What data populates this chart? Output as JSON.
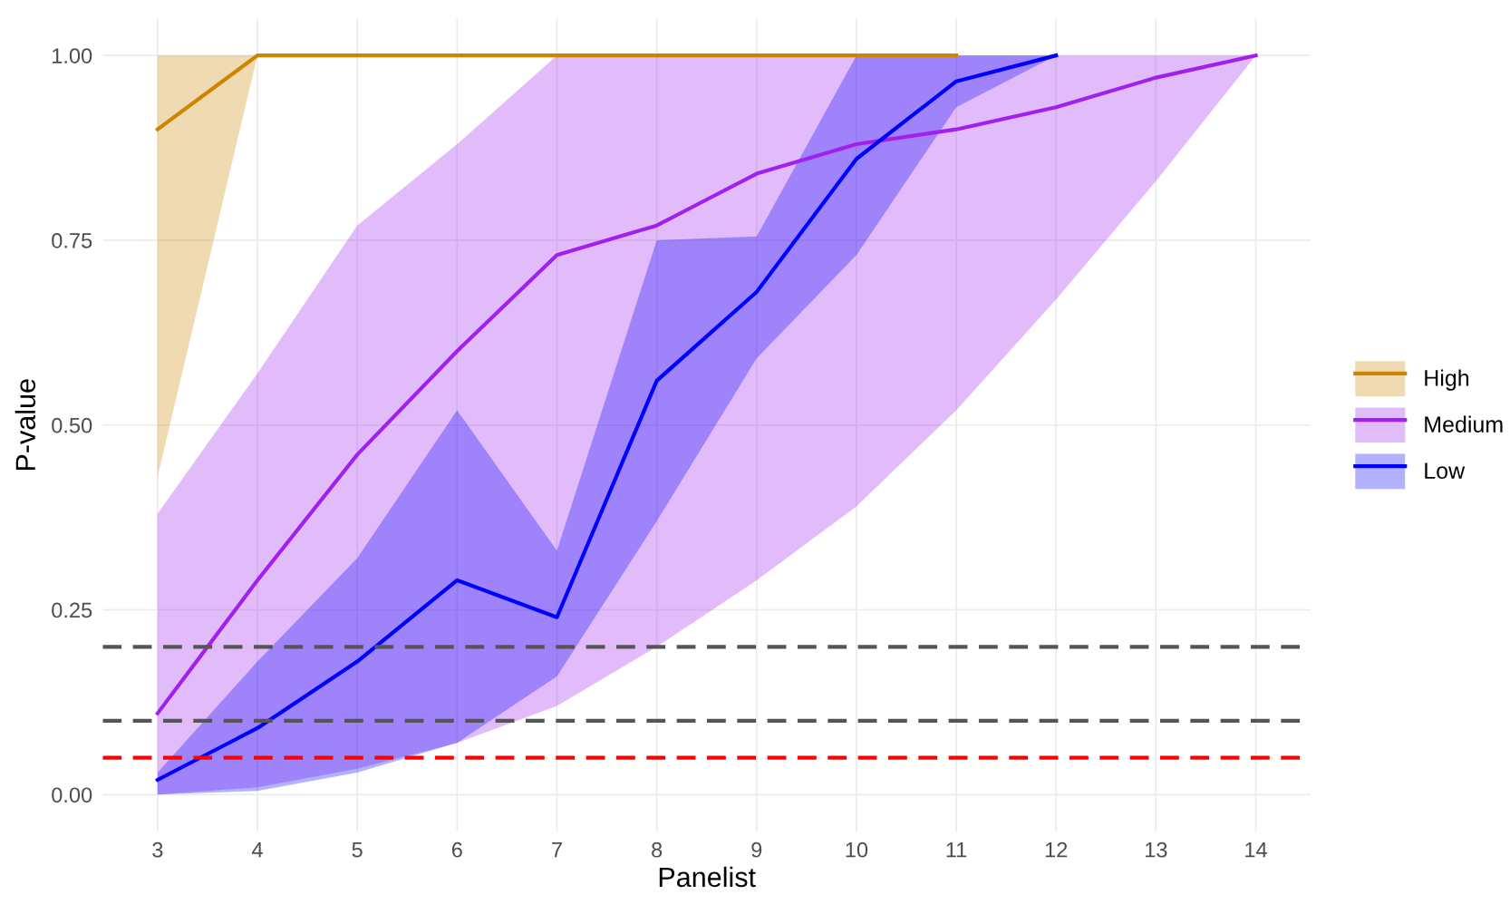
{
  "chart_data": {
    "type": "line",
    "xlabel": "Panelist",
    "ylabel": "P-value",
    "xlim": [
      2.45,
      14.55
    ],
    "ylim": [
      -0.05,
      1.05
    ],
    "xticks": [
      3,
      4,
      5,
      6,
      7,
      8,
      9,
      10,
      11,
      12,
      13,
      14
    ],
    "yticks": [
      {
        "value": 0,
        "label": "0.00"
      },
      {
        "value": 0.25,
        "label": "0.25"
      },
      {
        "value": 0.5,
        "label": "0.50"
      },
      {
        "value": 0.75,
        "label": "0.75"
      },
      {
        "value": 1,
        "label": "1.00"
      }
    ],
    "grid": true,
    "legend": "right",
    "line_style": "solid",
    "marker": "none",
    "series": [
      {
        "name": "High",
        "color": "#cd8500",
        "x": [
          3,
          4,
          5,
          6,
          7,
          8,
          9,
          10,
          11
        ],
        "values": [
          0.9,
          1,
          1,
          1,
          1,
          1,
          1,
          1,
          1
        ],
        "lower": [
          0.43,
          1,
          1,
          1,
          1,
          1,
          1,
          1,
          1
        ],
        "upper": [
          1,
          1,
          1,
          1,
          1,
          1,
          1,
          1,
          1
        ]
      },
      {
        "name": "Medium",
        "color": "#a020f0",
        "x": [
          3,
          4,
          5,
          6,
          7,
          8,
          9,
          10,
          11,
          12,
          13,
          14
        ],
        "values": [
          0.11,
          0.29,
          0.46,
          0.6,
          0.73,
          0.77,
          0.84,
          0.88,
          0.9,
          0.93,
          0.97,
          1
        ],
        "lower": [
          0,
          0.01,
          0.035,
          0.07,
          0.12,
          0.2,
          0.29,
          0.39,
          0.52,
          0.67,
          0.83,
          1
        ],
        "upper": [
          0.38,
          0.57,
          0.77,
          0.88,
          1,
          1,
          1,
          1,
          1,
          1,
          1,
          1
        ]
      },
      {
        "name": "Low",
        "color": "#0000ff",
        "x": [
          3,
          4,
          5,
          6,
          7,
          8,
          9,
          10,
          11,
          12
        ],
        "values": [
          0.02,
          0.09,
          0.18,
          0.29,
          0.24,
          0.56,
          0.68,
          0.86,
          0.965,
          1
        ],
        "lower": [
          0,
          0.005,
          0.03,
          0.07,
          0.16,
          0.37,
          0.59,
          0.73,
          0.93,
          1
        ],
        "upper": [
          0.03,
          0.18,
          0.32,
          0.52,
          0.33,
          0.75,
          0.755,
          1,
          1,
          1
        ]
      }
    ],
    "ref_lines": [
      {
        "axis": "y",
        "value": 0.2,
        "color": "#555555",
        "line_style": "dashed"
      },
      {
        "axis": "y",
        "value": 0.1,
        "color": "#555555",
        "line_style": "dashed"
      },
      {
        "axis": "y",
        "value": 0.05,
        "color": "#ff0000",
        "line_style": "dashed"
      }
    ]
  }
}
